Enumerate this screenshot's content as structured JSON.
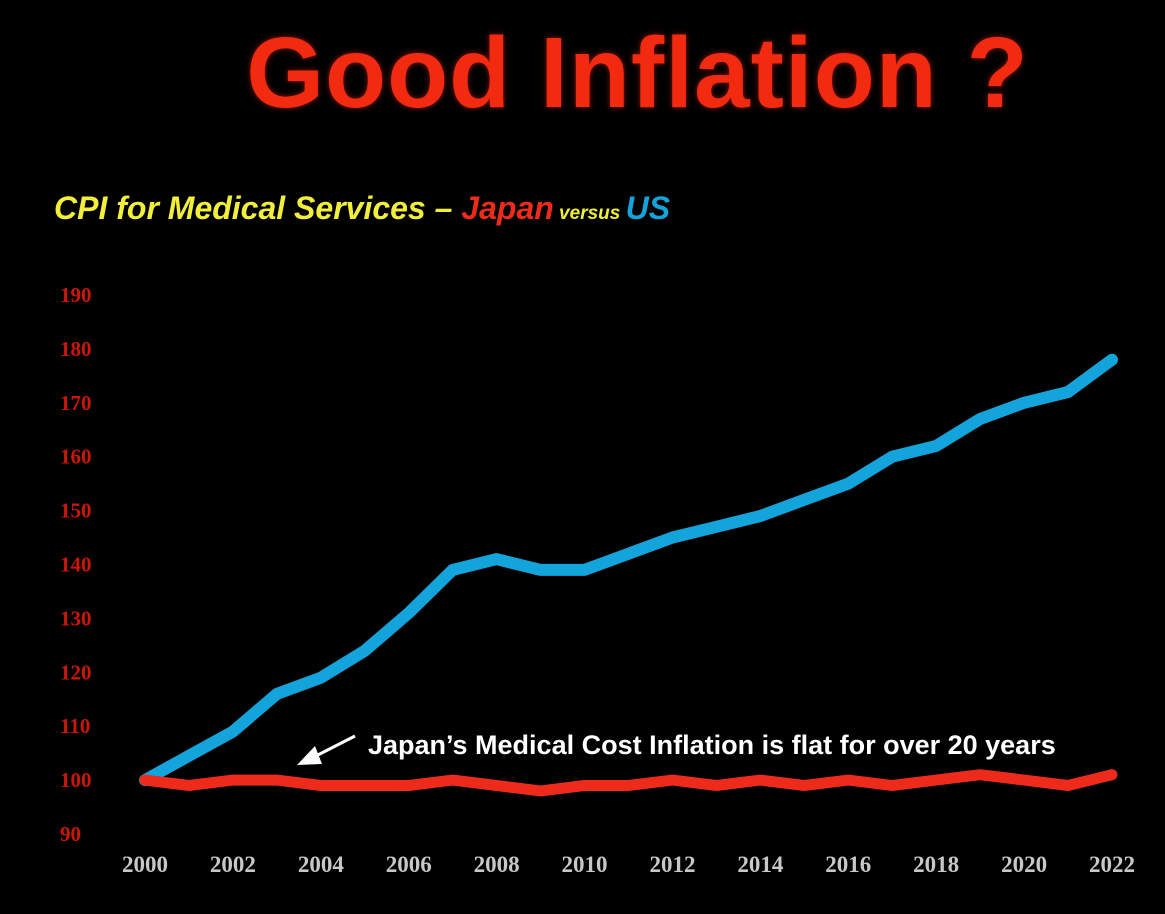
{
  "title": "Good Inflation ?",
  "subtitle": {
    "prefix": "CPI for Medical Services – ",
    "japan": "Japan",
    "versus": " versus ",
    "us": "US"
  },
  "colors": {
    "title": "#f22a10",
    "subtitle": "#f1ee3c",
    "japan": "#ee2a1a",
    "us": "#13a4dc",
    "y_ticks": "#cc1608",
    "x_ticks": "#c8c8c8",
    "annotation": "#ffffff"
  },
  "chart_data": {
    "type": "line",
    "title": "CPI for Medical Services – Japan versus US",
    "xlabel": "",
    "ylabel": "",
    "x": [
      2000,
      2001,
      2002,
      2003,
      2004,
      2005,
      2006,
      2007,
      2008,
      2009,
      2010,
      2011,
      2012,
      2013,
      2014,
      2015,
      2016,
      2017,
      2018,
      2019,
      2020,
      2021,
      2022
    ],
    "xlim": [
      2000,
      2022
    ],
    "ylim": [
      90,
      190
    ],
    "x_ticks": [
      "2000",
      "2002",
      "2004",
      "2006",
      "2008",
      "2010",
      "2012",
      "2014",
      "2016",
      "2018",
      "2020",
      "2022"
    ],
    "y_ticks": [
      "190",
      "180",
      "170",
      "160",
      "150",
      "140",
      "130",
      "120",
      "110",
      "100",
      "90"
    ],
    "series": [
      {
        "name": "US",
        "values": [
          100,
          104.5,
          109,
          116,
          119,
          124,
          131,
          139,
          141,
          139,
          139,
          142,
          145,
          147,
          149,
          152,
          155,
          160,
          162,
          167,
          170,
          172,
          178
        ]
      },
      {
        "name": "Japan",
        "values": [
          100,
          99,
          100,
          100,
          99,
          99,
          99,
          100,
          99,
          98,
          99,
          99,
          100,
          99,
          100,
          99,
          100,
          99,
          100,
          101,
          100,
          99,
          101
        ]
      }
    ],
    "annotations": [
      {
        "text": "Japan’s Medical Cost Inflation is flat for over 20 years",
        "x": 2004.8,
        "y": 106.5
      }
    ]
  }
}
